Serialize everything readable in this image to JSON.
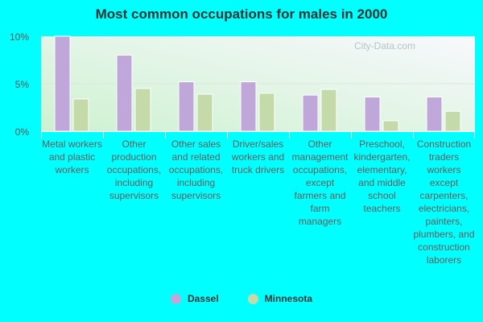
{
  "chart_data": {
    "type": "bar",
    "title": "Most common occupations for males in 2000",
    "categories": [
      "Metal workers and plastic workers",
      "Other production occupations, including supervisors",
      "Other sales and related occupations, including supervisors",
      "Driver/sales workers and truck drivers",
      "Other management occupations, except farmers and farm managers",
      "Preschool, kindergarten, elementary, and middle school teachers",
      "Construction traders workers except carpenters, electricians, painters, plumbers, and construction laborers"
    ],
    "series": [
      {
        "name": "Dassel",
        "color": "#bfa8d9",
        "values": [
          10.0,
          8.0,
          5.2,
          5.2,
          3.8,
          3.6,
          3.6
        ]
      },
      {
        "name": "Minnesota",
        "color": "#c5daa9",
        "values": [
          3.4,
          4.5,
          3.9,
          4.0,
          4.4,
          1.1,
          2.1
        ]
      }
    ],
    "yticks": [
      "0%",
      "5%",
      "10%"
    ],
    "ytick_values": [
      0,
      5,
      10
    ],
    "ylim": [
      0,
      10
    ],
    "xlabel": "",
    "ylabel": "",
    "legend_position": "bottom",
    "watermark": "City-Data.com"
  }
}
